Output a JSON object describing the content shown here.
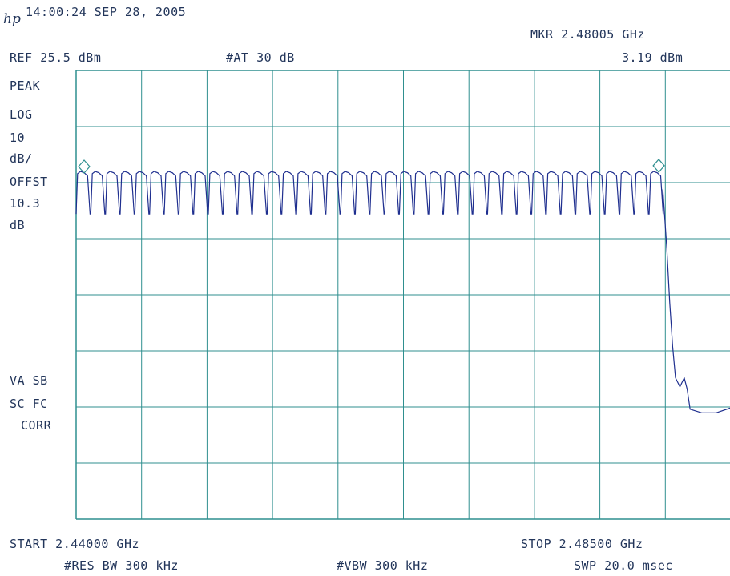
{
  "header": {
    "logo": "hp",
    "timestamp": "14:00:24 SEP 28, 2005",
    "marker_freq": "MKR 2.48005 GHz",
    "ref_level": "REF 25.5 dBm",
    "attenuation": "#AT 30 dB",
    "marker_level": "3.19 dBm"
  },
  "left_annotations": {
    "detector": "PEAK",
    "scale": "LOG",
    "scale_val": "10",
    "scale_unit": "dB/",
    "offset_label": "OFFST",
    "offset_val": "10.3",
    "offset_unit": "dB",
    "va_sb": "VA SB",
    "sc_fc": "SC FC",
    "corr": "CORR"
  },
  "footer": {
    "start": "START 2.44000 GHz",
    "stop": "STOP 2.48500 GHz",
    "rbw": "#RES BW 300 kHz",
    "vbw": "#VBW 300 kHz",
    "sweep": "SWP 20.0 msec"
  },
  "colors": {
    "grid": "#2f8f8f",
    "trace": "#1f2f8f",
    "text": "#22355a"
  },
  "chart_data": {
    "type": "line",
    "x_unit": "GHz",
    "y_unit": "dBm",
    "xlim": [
      2.44,
      2.485
    ],
    "ylim": [
      -74.5,
      25.5
    ],
    "grid": true,
    "divisions": {
      "x": 10,
      "y": 8
    },
    "channel_hops": {
      "count": 40,
      "start_ghz": 2.44,
      "spacing_ghz": 0.00101,
      "peak_dbm": 3.0,
      "trough_dbm": -6.5
    },
    "rolloff": [
      {
        "x": 2.48033,
        "y": -1.0
      },
      {
        "x": 2.4806,
        "y": -14.0
      },
      {
        "x": 2.4808,
        "y": -26.0
      },
      {
        "x": 2.481,
        "y": -36.0
      },
      {
        "x": 2.4812,
        "y": -43.0
      },
      {
        "x": 2.4815,
        "y": -45.0
      },
      {
        "x": 2.4818,
        "y": -43.0
      },
      {
        "x": 2.482,
        "y": -45.5
      },
      {
        "x": 2.4822,
        "y": -50.0
      },
      {
        "x": 2.483,
        "y": -50.5
      },
      {
        "x": 2.484,
        "y": -50.8
      },
      {
        "x": 2.485,
        "y": -50.0
      }
    ],
    "markers": [
      {
        "x": 2.44,
        "y": 3.0
      },
      {
        "x": 2.48005,
        "y": 3.19
      }
    ]
  }
}
